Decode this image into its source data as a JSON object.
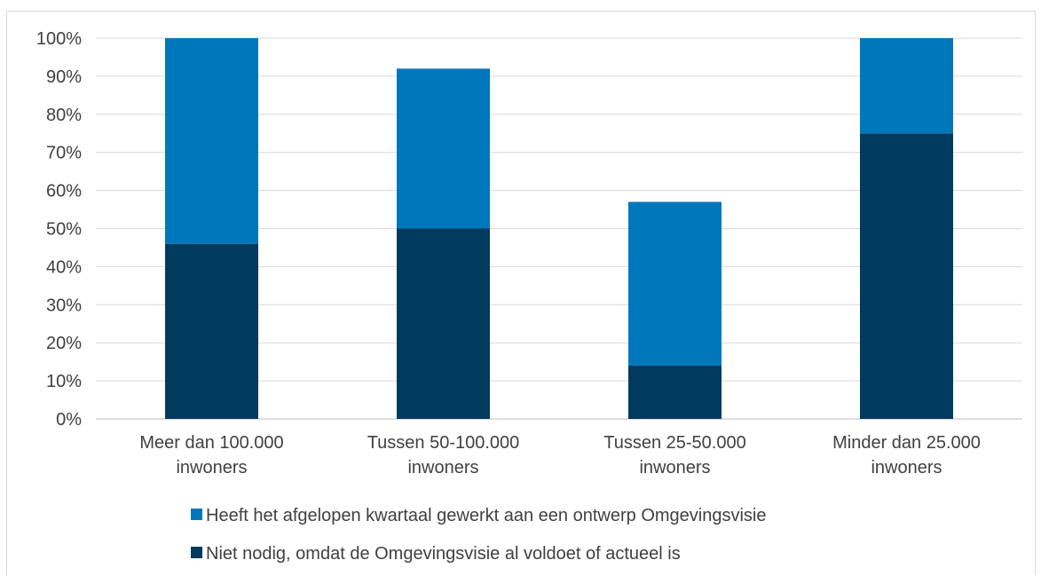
{
  "chart_data": {
    "type": "bar",
    "stacked": true,
    "categories": [
      [
        "Meer dan 100.000",
        "inwoners"
      ],
      [
        "Tussen 50-100.000",
        "inwoners"
      ],
      [
        "Tussen 25-50.000",
        "inwoners"
      ],
      [
        "Minder dan 25.000",
        "inwoners"
      ]
    ],
    "series": [
      {
        "name": "Niet nodig, omdat de Omgevingsvisie al voldoet of actueel is",
        "color": "#003a5d",
        "values": [
          46,
          50,
          14,
          75
        ]
      },
      {
        "name": "Heeft het afgelopen kwartaal gewerkt aan een ontwerp Omgevingsvisie",
        "color": "#0077bb",
        "values": [
          54,
          42,
          43,
          25
        ]
      }
    ],
    "ylim": [
      0,
      100
    ],
    "yticks": [
      "0%",
      "10%",
      "20%",
      "30%",
      "40%",
      "50%",
      "60%",
      "70%",
      "80%",
      "90%",
      "100%"
    ],
    "grid": true,
    "legend_position": "bottom"
  }
}
